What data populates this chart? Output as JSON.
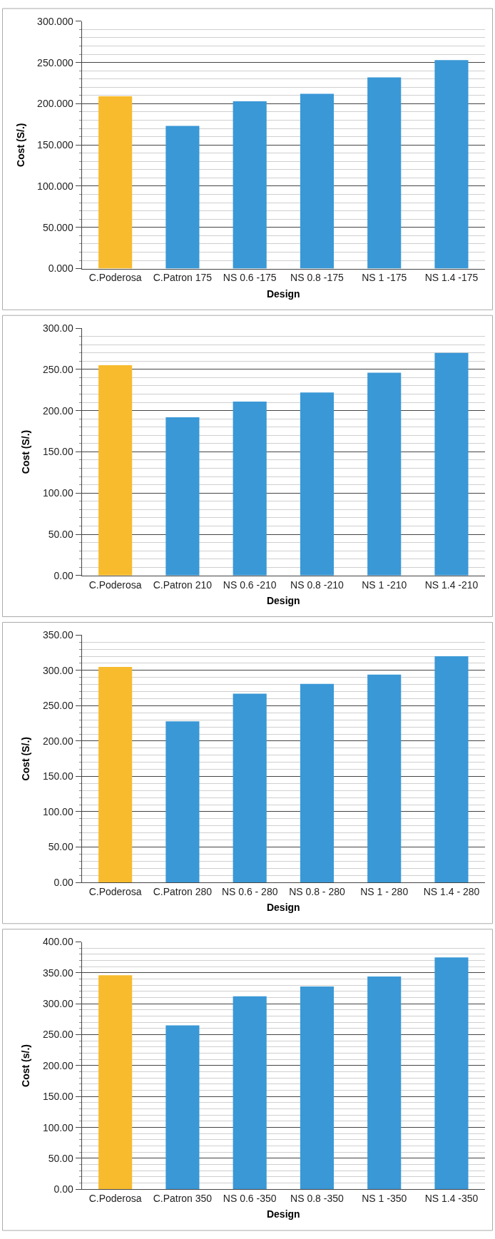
{
  "chart_data": [
    {
      "type": "bar",
      "categories": [
        "C.Poderosa",
        "C.Patron 175",
        "NS 0.6 -175",
        "NS 0.8 -175",
        "NS 1 -175",
        "NS 1.4 -175"
      ],
      "values": [
        209,
        173,
        203,
        212,
        232,
        253
      ],
      "colors": [
        "#f7bb2d",
        "#3a98d6",
        "#3a98d6",
        "#3a98d6",
        "#3a98d6",
        "#3a98d6"
      ],
      "xlabel": "Design",
      "ylabel": "Cost (S/.)",
      "ylim": [
        0,
        300
      ],
      "yticks": [
        {
          "value": 0,
          "label": "0.000"
        },
        {
          "value": 50,
          "label": "50.000"
        },
        {
          "value": 100,
          "label": "100.000"
        },
        {
          "value": 150,
          "label": "150.000"
        },
        {
          "value": 200,
          "label": "200.000"
        },
        {
          "value": 250,
          "label": "250.000"
        },
        {
          "value": 300,
          "label": "300.000"
        }
      ],
      "grid": "y"
    },
    {
      "type": "bar",
      "categories": [
        "C.Poderosa",
        "C.Patron 210",
        "NS 0.6 -210",
        "NS 0.8 -210",
        "NS 1 -210",
        "NS 1.4 -210"
      ],
      "values": [
        255,
        192,
        211,
        222,
        246,
        270
      ],
      "colors": [
        "#f7bb2d",
        "#3a98d6",
        "#3a98d6",
        "#3a98d6",
        "#3a98d6",
        "#3a98d6"
      ],
      "xlabel": "Design",
      "ylabel": "Cost (S/.)",
      "ylim": [
        0,
        300
      ],
      "yticks": [
        {
          "value": 0,
          "label": "0.00"
        },
        {
          "value": 50,
          "label": "50.00"
        },
        {
          "value": 100,
          "label": "100.00"
        },
        {
          "value": 150,
          "label": "150.00"
        },
        {
          "value": 200,
          "label": "200.00"
        },
        {
          "value": 250,
          "label": "250.00"
        },
        {
          "value": 300,
          "label": "300.00"
        }
      ],
      "grid": "y"
    },
    {
      "type": "bar",
      "categories": [
        "C.Poderosa",
        "C.Patron 280",
        "NS 0.6 - 280",
        "NS 0.8 - 280",
        "NS 1 - 280",
        "NS 1.4 - 280"
      ],
      "values": [
        305,
        228,
        267,
        281,
        294,
        320
      ],
      "colors": [
        "#f7bb2d",
        "#3a98d6",
        "#3a98d6",
        "#3a98d6",
        "#3a98d6",
        "#3a98d6"
      ],
      "xlabel": "Design",
      "ylabel": "Cost (S/.)",
      "ylim": [
        0,
        350
      ],
      "yticks": [
        {
          "value": 0,
          "label": "0.00"
        },
        {
          "value": 50,
          "label": "50.00"
        },
        {
          "value": 100,
          "label": "100.00"
        },
        {
          "value": 150,
          "label": "150.00"
        },
        {
          "value": 200,
          "label": "200.00"
        },
        {
          "value": 250,
          "label": "250.00"
        },
        {
          "value": 300,
          "label": "300.00"
        },
        {
          "value": 350,
          "label": "350.00"
        }
      ],
      "grid": "y"
    },
    {
      "type": "bar",
      "categories": [
        "C.Poderosa",
        "C.Patron 350",
        "NS 0.6 -350",
        "NS 0.8 -350",
        "NS 1 -350",
        "NS 1.4 -350"
      ],
      "values": [
        346,
        265,
        312,
        328,
        344,
        375
      ],
      "colors": [
        "#f7bb2d",
        "#3a98d6",
        "#3a98d6",
        "#3a98d6",
        "#3a98d6",
        "#3a98d6"
      ],
      "xlabel": "Design",
      "ylabel": "Cost (s/.)",
      "ylim": [
        0,
        400
      ],
      "yticks": [
        {
          "value": 0,
          "label": "0.00"
        },
        {
          "value": 50,
          "label": "50.00"
        },
        {
          "value": 100,
          "label": "100.00"
        },
        {
          "value": 150,
          "label": "150.00"
        },
        {
          "value": 200,
          "label": "200.00"
        },
        {
          "value": 250,
          "label": "250.00"
        },
        {
          "value": 300,
          "label": "300.00"
        },
        {
          "value": 350,
          "label": "350.00"
        },
        {
          "value": 400,
          "label": "400.00"
        }
      ],
      "grid": "y"
    }
  ]
}
